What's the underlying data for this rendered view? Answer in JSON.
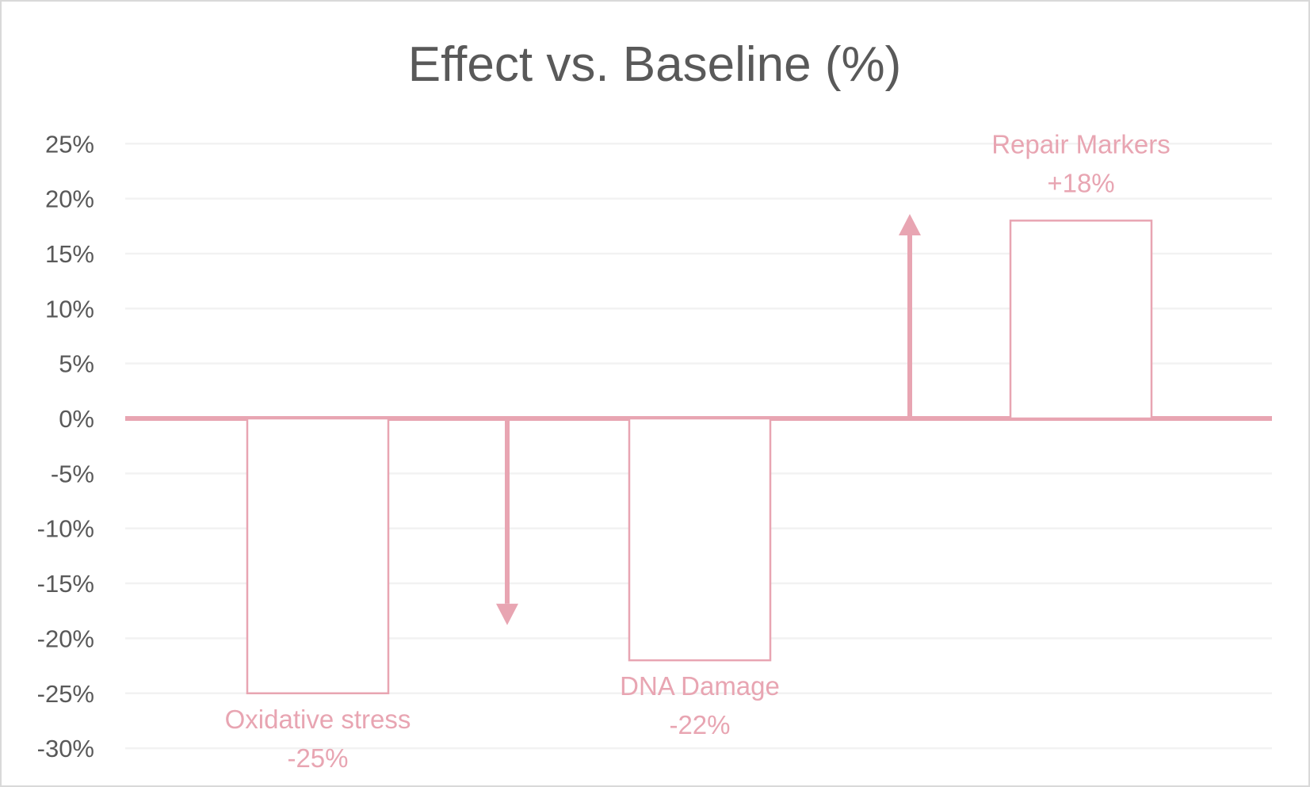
{
  "chart_data": {
    "type": "bar",
    "title": "Effect vs. Baseline (%)",
    "xlabel": "",
    "ylabel": "",
    "ylim": [
      -30,
      25
    ],
    "yticks": [
      25,
      20,
      15,
      10,
      5,
      0,
      -5,
      -10,
      -15,
      -20,
      -25,
      -30
    ],
    "ytick_labels": [
      "25%",
      "20%",
      "15%",
      "10%",
      "5%",
      "0%",
      "-5%",
      "-10%",
      "-15%",
      "-20%",
      "-25%",
      "-30%"
    ],
    "grid": true,
    "legend": "none",
    "categories": [
      "Oxidative stress",
      "DNA Damage",
      "Repair Markers"
    ],
    "values": [
      -25,
      -22,
      18
    ],
    "data_labels": [
      "-25%",
      "-22%",
      "+18%"
    ],
    "annotations": [
      {
        "type": "arrow",
        "direction": "down",
        "from": 0,
        "to": -18.8,
        "position": "between Oxidative stress and DNA Damage"
      },
      {
        "type": "arrow",
        "direction": "up",
        "from": 0,
        "to": 18.6,
        "position": "between DNA Damage and Repair Markers"
      }
    ],
    "colors": {
      "bar": "#e8a5b2",
      "text": "#595959",
      "grid": "#f2f2f2",
      "border": "#d9d9d9"
    }
  }
}
